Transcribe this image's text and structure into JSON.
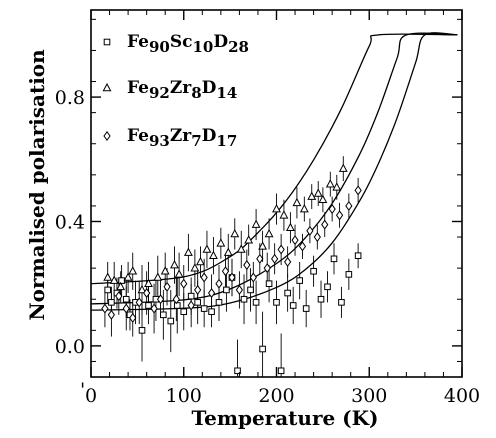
{
  "chart_data": {
    "type": "scatter",
    "xlabel": "Temperature (K)",
    "ylabel": "Normalised polarisation",
    "xlim": [
      0,
      400
    ],
    "ylim": [
      -0.1,
      1.08
    ],
    "x_ticks": [
      0,
      100,
      200,
      300,
      400
    ],
    "x_tick_labels": [
      "0",
      "100",
      "200",
      "300",
      "400"
    ],
    "y_ticks": [
      0.0,
      0.4,
      0.8
    ],
    "y_tick_labels": [
      "0.0",
      "0.4",
      "0.8"
    ],
    "stray_mark": "'",
    "grid": false,
    "legend_position": "top-left",
    "series": [
      {
        "name_parts": [
          {
            "t": "Fe",
            "s": "n"
          },
          {
            "t": "90",
            "s": "sub"
          },
          {
            "t": "Sc",
            "s": "n"
          },
          {
            "t": "10",
            "s": "sub"
          },
          {
            "t": "D",
            "s": "n"
          },
          {
            "t": "28",
            "s": "sub"
          }
        ],
        "marker": "square",
        "points": [
          [
            18,
            0.18,
            0.04
          ],
          [
            22,
            0.14,
            0.05
          ],
          [
            28,
            0.17,
            0.05
          ],
          [
            33,
            0.21,
            0.05
          ],
          [
            38,
            0.15,
            0.06
          ],
          [
            42,
            0.1,
            0.05
          ],
          [
            48,
            0.14,
            0.07
          ],
          [
            55,
            0.05,
            0.1
          ],
          [
            62,
            0.13,
            0.06
          ],
          [
            70,
            0.15,
            0.07
          ],
          [
            78,
            0.1,
            0.08
          ],
          [
            86,
            0.08,
            0.1
          ],
          [
            93,
            0.13,
            0.09
          ],
          [
            100,
            0.11,
            0.06
          ],
          [
            108,
            0.16,
            0.06
          ],
          [
            115,
            0.14,
            0.07
          ],
          [
            122,
            0.12,
            0.06
          ],
          [
            130,
            0.11,
            0.05
          ],
          [
            138,
            0.14,
            0.06
          ],
          [
            146,
            0.18,
            0.07
          ],
          [
            152,
            0.22,
            0.06
          ],
          [
            158,
            -0.08,
            0.1
          ],
          [
            165,
            0.15,
            0.08
          ],
          [
            172,
            0.18,
            0.07
          ],
          [
            178,
            0.14,
            0.07
          ],
          [
            185,
            -0.01,
            0.12
          ],
          [
            192,
            0.2,
            0.06
          ],
          [
            200,
            0.14,
            0.07
          ],
          [
            205,
            -0.08,
            0.12
          ],
          [
            212,
            0.17,
            0.06
          ],
          [
            218,
            0.13,
            0.06
          ],
          [
            225,
            0.21,
            0.06
          ],
          [
            232,
            0.12,
            0.06
          ],
          [
            240,
            0.24,
            0.05
          ],
          [
            248,
            0.15,
            0.06
          ],
          [
            255,
            0.19,
            0.05
          ],
          [
            262,
            0.28,
            0.05
          ],
          [
            270,
            0.14,
            0.05
          ],
          [
            278,
            0.23,
            0.05
          ],
          [
            288,
            0.29,
            0.04
          ]
        ],
        "fit": [
          [
            0,
            0.115
          ],
          [
            100,
            0.121
          ],
          [
            150,
            0.138
          ],
          [
            200,
            0.188
          ],
          [
            230,
            0.243
          ],
          [
            260,
            0.331
          ],
          [
            290,
            0.468
          ],
          [
            310,
            0.587
          ],
          [
            330,
            0.733
          ],
          [
            350,
            0.911
          ],
          [
            360,
            1.0
          ],
          [
            395,
            1.0
          ]
        ]
      },
      {
        "name_parts": [
          {
            "t": "Fe",
            "s": "n"
          },
          {
            "t": "92",
            "s": "sub"
          },
          {
            "t": "Zr",
            "s": "n"
          },
          {
            "t": "8",
            "s": "sub"
          },
          {
            "t": "D",
            "s": "n"
          },
          {
            "t": "14",
            "s": "sub"
          }
        ],
        "marker": "triangle",
        "points": [
          [
            18,
            0.22,
            0.05
          ],
          [
            25,
            0.21,
            0.06
          ],
          [
            32,
            0.19,
            0.05
          ],
          [
            40,
            0.22,
            0.05
          ],
          [
            45,
            0.24,
            0.06
          ],
          [
            55,
            0.18,
            0.08
          ],
          [
            62,
            0.2,
            0.07
          ],
          [
            72,
            0.22,
            0.07
          ],
          [
            80,
            0.24,
            0.06
          ],
          [
            90,
            0.26,
            0.06
          ],
          [
            95,
            0.23,
            0.07
          ],
          [
            105,
            0.3,
            0.06
          ],
          [
            112,
            0.25,
            0.06
          ],
          [
            118,
            0.27,
            0.05
          ],
          [
            125,
            0.31,
            0.06
          ],
          [
            132,
            0.29,
            0.06
          ],
          [
            140,
            0.33,
            0.05
          ],
          [
            148,
            0.3,
            0.06
          ],
          [
            155,
            0.36,
            0.05
          ],
          [
            162,
            0.31,
            0.06
          ],
          [
            170,
            0.34,
            0.05
          ],
          [
            178,
            0.39,
            0.05
          ],
          [
            185,
            0.32,
            0.05
          ],
          [
            192,
            0.36,
            0.05
          ],
          [
            200,
            0.44,
            0.05
          ],
          [
            208,
            0.42,
            0.05
          ],
          [
            215,
            0.38,
            0.05
          ],
          [
            222,
            0.46,
            0.05
          ],
          [
            230,
            0.44,
            0.04
          ],
          [
            238,
            0.48,
            0.04
          ],
          [
            245,
            0.49,
            0.04
          ],
          [
            250,
            0.47,
            0.04
          ],
          [
            258,
            0.52,
            0.04
          ],
          [
            265,
            0.51,
            0.04
          ],
          [
            272,
            0.57,
            0.04
          ]
        ],
        "fit": [
          [
            0,
            0.2
          ],
          [
            100,
            0.222
          ],
          [
            150,
            0.287
          ],
          [
            180,
            0.364
          ],
          [
            210,
            0.465
          ],
          [
            240,
            0.598
          ],
          [
            270,
            0.763
          ],
          [
            300,
            0.964
          ],
          [
            310,
            1.0
          ],
          [
            395,
            1.0
          ]
        ]
      },
      {
        "name_parts": [
          {
            "t": "Fe",
            "s": "n"
          },
          {
            "t": "93",
            "s": "sub"
          },
          {
            "t": "Zr",
            "s": "n"
          },
          {
            "t": "7",
            "s": "sub"
          },
          {
            "t": "D",
            "s": "n"
          },
          {
            "t": "17",
            "s": "sub"
          }
        ],
        "marker": "diamond",
        "points": [
          [
            15,
            0.12,
            0.06
          ],
          [
            22,
            0.1,
            0.07
          ],
          [
            30,
            0.16,
            0.06
          ],
          [
            38,
            0.12,
            0.07
          ],
          [
            45,
            0.09,
            0.06
          ],
          [
            52,
            0.14,
            0.07
          ],
          [
            60,
            0.17,
            0.07
          ],
          [
            68,
            0.12,
            0.08
          ],
          [
            75,
            0.15,
            0.06
          ],
          [
            82,
            0.19,
            0.06
          ],
          [
            92,
            0.15,
            0.07
          ],
          [
            100,
            0.2,
            0.06
          ],
          [
            108,
            0.13,
            0.07
          ],
          [
            115,
            0.18,
            0.06
          ],
          [
            122,
            0.22,
            0.06
          ],
          [
            130,
            0.17,
            0.06
          ],
          [
            138,
            0.2,
            0.06
          ],
          [
            145,
            0.24,
            0.05
          ],
          [
            152,
            0.22,
            0.06
          ],
          [
            160,
            0.18,
            0.06
          ],
          [
            168,
            0.26,
            0.05
          ],
          [
            175,
            0.22,
            0.05
          ],
          [
            182,
            0.28,
            0.05
          ],
          [
            190,
            0.25,
            0.05
          ],
          [
            198,
            0.28,
            0.05
          ],
          [
            205,
            0.31,
            0.05
          ],
          [
            212,
            0.27,
            0.05
          ],
          [
            220,
            0.34,
            0.05
          ],
          [
            228,
            0.32,
            0.04
          ],
          [
            236,
            0.37,
            0.04
          ],
          [
            244,
            0.35,
            0.04
          ],
          [
            252,
            0.39,
            0.04
          ],
          [
            260,
            0.44,
            0.04
          ],
          [
            268,
            0.42,
            0.04
          ],
          [
            278,
            0.45,
            0.04
          ],
          [
            288,
            0.5,
            0.04
          ]
        ],
        "fit": [
          [
            0,
            0.135
          ],
          [
            100,
            0.148
          ],
          [
            150,
            0.183
          ],
          [
            200,
            0.265
          ],
          [
            230,
            0.344
          ],
          [
            260,
            0.458
          ],
          [
            290,
            0.618
          ],
          [
            310,
            0.757
          ],
          [
            330,
            0.925
          ],
          [
            340,
            1.0
          ],
          [
            395,
            1.0
          ]
        ]
      }
    ]
  }
}
